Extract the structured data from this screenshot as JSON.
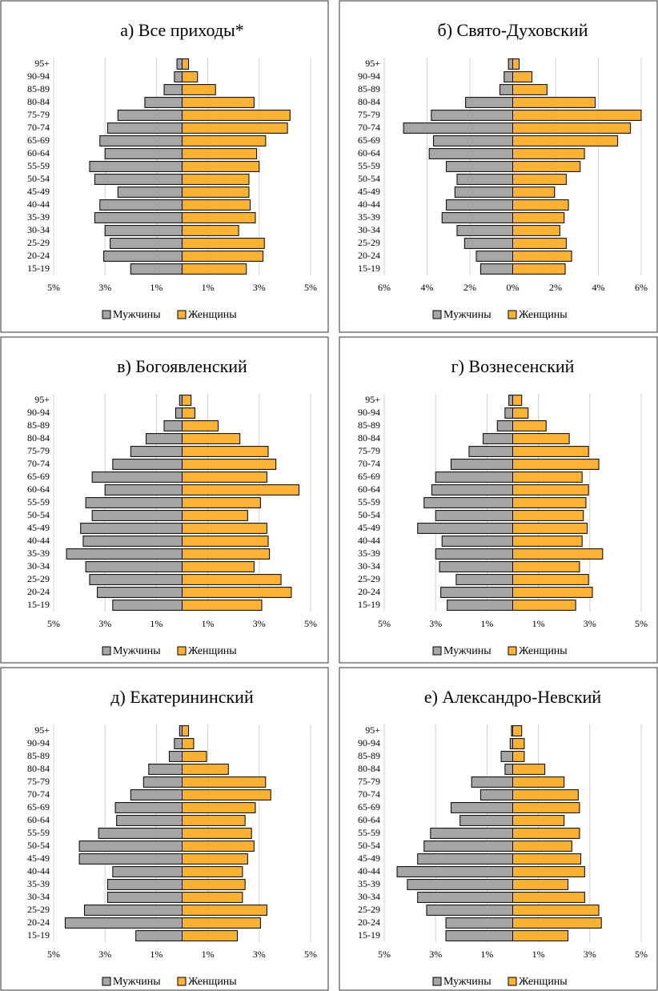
{
  "chart_data": [
    {
      "type": "pyramid",
      "title": "а) Все приходы*",
      "categories": [
        "95+",
        "90-94",
        "85-89",
        "80-84",
        "75-79",
        "70-74",
        "65-69",
        "60-64",
        "55-59",
        "50-54",
        "45-49",
        "40-44",
        "35-39",
        "30-34",
        "25-29",
        "20-24",
        "15-19"
      ],
      "series": [
        {
          "name": "Мужчины",
          "color": "#a6a6a6",
          "values": [
            -0.2,
            -0.3,
            -0.7,
            -1.45,
            -2.5,
            -2.9,
            -3.2,
            -3.0,
            -3.6,
            -3.4,
            -2.5,
            -3.2,
            -3.4,
            -3.0,
            -2.8,
            -3.05,
            -2.0
          ]
        },
        {
          "name": "Женщины",
          "color": "#f9b233",
          "values": [
            0.25,
            0.6,
            1.3,
            2.8,
            4.2,
            4.1,
            3.25,
            2.9,
            3.0,
            2.6,
            2.6,
            2.65,
            2.85,
            2.2,
            3.2,
            3.15,
            2.5
          ]
        }
      ],
      "xlim": [
        -5,
        5
      ],
      "xticks": [
        {
          "value": -5,
          "label": "5%"
        },
        {
          "value": -3,
          "label": "3%"
        },
        {
          "value": -1,
          "label": "1%"
        },
        {
          "value": 1,
          "label": "1%"
        },
        {
          "value": 3,
          "label": "3%"
        },
        {
          "value": 5,
          "label": "5%"
        }
      ],
      "grid": true,
      "legend": "bottom"
    },
    {
      "type": "pyramid",
      "title": "б) Свято-Духовский",
      "categories": [
        "95+",
        "90-94",
        "85-89",
        "80-84",
        "75-79",
        "70-74",
        "65-69",
        "60-64",
        "55-59",
        "50-54",
        "45-49",
        "40-44",
        "35-39",
        "30-34",
        "25-29",
        "20-24",
        "15-19"
      ],
      "series": [
        {
          "name": "Мужчины",
          "color": "#a6a6a6",
          "values": [
            -0.2,
            -0.4,
            -0.6,
            -2.2,
            -3.8,
            -5.1,
            -3.7,
            -3.9,
            -3.1,
            -2.6,
            -2.7,
            -3.1,
            -3.3,
            -2.6,
            -2.25,
            -1.7,
            -1.5
          ]
        },
        {
          "name": "Женщины",
          "color": "#f9b233",
          "values": [
            0.3,
            0.9,
            1.6,
            3.85,
            6.0,
            5.5,
            4.9,
            3.35,
            3.15,
            2.5,
            1.95,
            2.6,
            2.4,
            2.2,
            2.5,
            2.75,
            2.45
          ]
        }
      ],
      "xlim": [
        -6,
        6
      ],
      "xticks": [
        {
          "value": -6,
          "label": "6%"
        },
        {
          "value": -4,
          "label": "4%"
        },
        {
          "value": -2,
          "label": "2%"
        },
        {
          "value": 0,
          "label": "0%"
        },
        {
          "value": 2,
          "label": "2%"
        },
        {
          "value": 4,
          "label": "4%"
        },
        {
          "value": 6,
          "label": "6%"
        }
      ],
      "grid": true,
      "legend": "bottom"
    },
    {
      "type": "pyramid",
      "title": "в) Богоявленский",
      "categories": [
        "95+",
        "90-94",
        "85-89",
        "80-84",
        "75-79",
        "70-74",
        "65-69",
        "60-64",
        "55-59",
        "50-54",
        "45-49",
        "40-44",
        "35-39",
        "30-34",
        "25-29",
        "20-24",
        "15-19"
      ],
      "series": [
        {
          "name": "Мужчины",
          "color": "#a6a6a6",
          "values": [
            -0.1,
            -0.25,
            -0.7,
            -1.4,
            -2.0,
            -2.7,
            -3.5,
            -3.0,
            -3.75,
            -3.5,
            -3.95,
            -3.85,
            -4.5,
            -3.75,
            -3.6,
            -3.3,
            -2.7
          ]
        },
        {
          "name": "Женщины",
          "color": "#f9b233",
          "values": [
            0.35,
            0.5,
            1.4,
            2.25,
            3.35,
            3.65,
            3.3,
            4.55,
            3.05,
            2.55,
            3.3,
            3.35,
            3.4,
            2.8,
            3.85,
            4.25,
            3.1
          ]
        }
      ],
      "xlim": [
        -5,
        5
      ],
      "xticks": [
        {
          "value": -5,
          "label": "5%"
        },
        {
          "value": -3,
          "label": "3%"
        },
        {
          "value": -1,
          "label": "1%"
        },
        {
          "value": 1,
          "label": "1%"
        },
        {
          "value": 3,
          "label": "3%"
        },
        {
          "value": 5,
          "label": "5%"
        }
      ],
      "grid": true,
      "legend": "bottom"
    },
    {
      "type": "pyramid",
      "title": "г) Вознесенский",
      "categories": [
        "95+",
        "90-94",
        "85-89",
        "80-84",
        "75-79",
        "70-74",
        "65-69",
        "60-64",
        "55-59",
        "50-54",
        "45-49",
        "40-44",
        "35-39",
        "30-34",
        "25-29",
        "20-24",
        "15-19"
      ],
      "series": [
        {
          "name": "Мужчины",
          "color": "#a6a6a6",
          "values": [
            -0.15,
            -0.3,
            -0.6,
            -1.15,
            -1.7,
            -2.4,
            -3.0,
            -3.15,
            -3.45,
            -3.0,
            -3.7,
            -2.75,
            -3.0,
            -2.85,
            -2.2,
            -2.8,
            -2.55
          ]
        },
        {
          "name": "Женщины",
          "color": "#f9b233",
          "values": [
            0.35,
            0.6,
            1.3,
            2.2,
            2.95,
            3.35,
            2.7,
            2.95,
            2.85,
            2.75,
            2.9,
            2.7,
            3.5,
            2.6,
            2.95,
            3.1,
            2.45
          ]
        }
      ],
      "xlim": [
        -5,
        5
      ],
      "xticks": [
        {
          "value": -5,
          "label": "5%"
        },
        {
          "value": -3,
          "label": "3%"
        },
        {
          "value": -1,
          "label": "1%"
        },
        {
          "value": 1,
          "label": "1%"
        },
        {
          "value": 3,
          "label": "3%"
        },
        {
          "value": 5,
          "label": "5%"
        }
      ],
      "grid": true,
      "legend": "bottom"
    },
    {
      "type": "pyramid",
      "title": "д) Екатерининский",
      "categories": [
        "95+",
        "90-94",
        "85-89",
        "80-84",
        "75-79",
        "70-74",
        "65-69",
        "60-64",
        "55-59",
        "50-54",
        "45-49",
        "40-44",
        "35-39",
        "30-34",
        "25-29",
        "20-24",
        "15-19"
      ],
      "series": [
        {
          "name": "Мужчины",
          "color": "#a6a6a6",
          "values": [
            -0.1,
            -0.3,
            -0.5,
            -1.3,
            -1.5,
            -2.0,
            -2.6,
            -2.55,
            -3.25,
            -4.0,
            -4.0,
            -2.7,
            -2.9,
            -2.9,
            -3.8,
            -4.55,
            -1.8
          ]
        },
        {
          "name": "Женщины",
          "color": "#f9b233",
          "values": [
            0.25,
            0.45,
            0.95,
            1.8,
            3.25,
            3.45,
            2.85,
            2.45,
            2.7,
            2.8,
            2.55,
            2.35,
            2.45,
            2.35,
            3.3,
            3.05,
            2.15
          ]
        }
      ],
      "xlim": [
        -5,
        5
      ],
      "xticks": [
        {
          "value": -5,
          "label": "5%"
        },
        {
          "value": -3,
          "label": "3%"
        },
        {
          "value": -1,
          "label": "1%"
        },
        {
          "value": 1,
          "label": "1%"
        },
        {
          "value": 3,
          "label": "3%"
        },
        {
          "value": 5,
          "label": "5%"
        }
      ],
      "grid": true,
      "legend": "bottom"
    },
    {
      "type": "pyramid",
      "title": "е) Александро-Невский",
      "categories": [
        "95+",
        "90-94",
        "85-89",
        "80-84",
        "75-79",
        "70-74",
        "65-69",
        "60-64",
        "55-59",
        "50-54",
        "45-49",
        "40-44",
        "35-39",
        "30-34",
        "25-29",
        "20-24",
        "15-19"
      ],
      "series": [
        {
          "name": "Мужчины",
          "color": "#a6a6a6",
          "values": [
            -0.05,
            -0.1,
            -0.45,
            -0.3,
            -1.6,
            -1.25,
            -2.4,
            -2.05,
            -3.2,
            -3.45,
            -3.7,
            -4.5,
            -4.1,
            -3.7,
            -3.35,
            -2.6,
            -2.6
          ]
        },
        {
          "name": "Женщины",
          "color": "#f9b233",
          "values": [
            0.35,
            0.45,
            0.45,
            1.25,
            2.0,
            2.55,
            2.6,
            2.0,
            2.6,
            2.3,
            2.65,
            2.8,
            2.15,
            2.8,
            3.35,
            3.45,
            2.15
          ]
        }
      ],
      "xlim": [
        -5,
        5
      ],
      "xticks": [
        {
          "value": -5,
          "label": "5%"
        },
        {
          "value": -3,
          "label": "3%"
        },
        {
          "value": -1,
          "label": "1%"
        },
        {
          "value": 1,
          "label": "1%"
        },
        {
          "value": 3,
          "label": "3%"
        },
        {
          "value": 5,
          "label": "5%"
        }
      ],
      "grid": true,
      "legend": "bottom"
    }
  ]
}
